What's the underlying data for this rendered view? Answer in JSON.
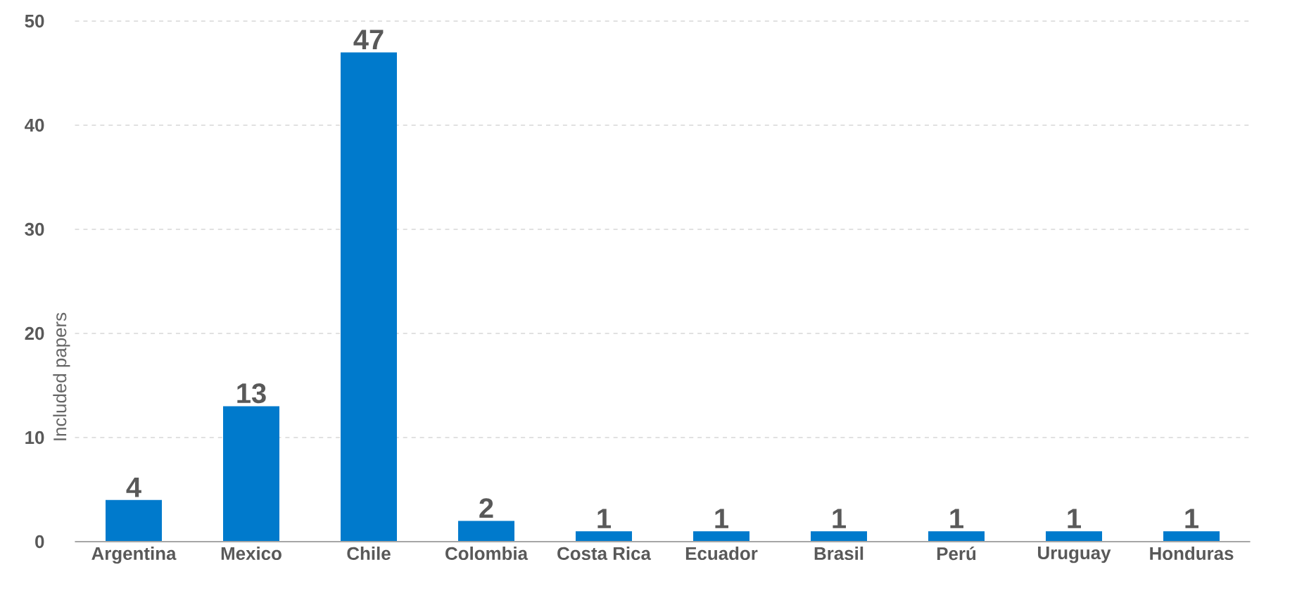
{
  "chart_data": {
    "type": "bar",
    "ylabel": "Included papers",
    "categories": [
      "Argentina",
      "Mexico",
      "Chile",
      "Colombia",
      "Costa Rica",
      "Ecuador",
      "Brasil",
      "Perú",
      "Uruguay",
      "Honduras"
    ],
    "values": [
      4,
      13,
      47,
      2,
      1,
      1,
      1,
      1,
      1,
      1
    ],
    "color": "#007acc",
    "ylim": [
      0,
      50
    ],
    "yticks": [
      0,
      10,
      20,
      30,
      40,
      50
    ],
    "grid": "y",
    "data_labels": true
  }
}
